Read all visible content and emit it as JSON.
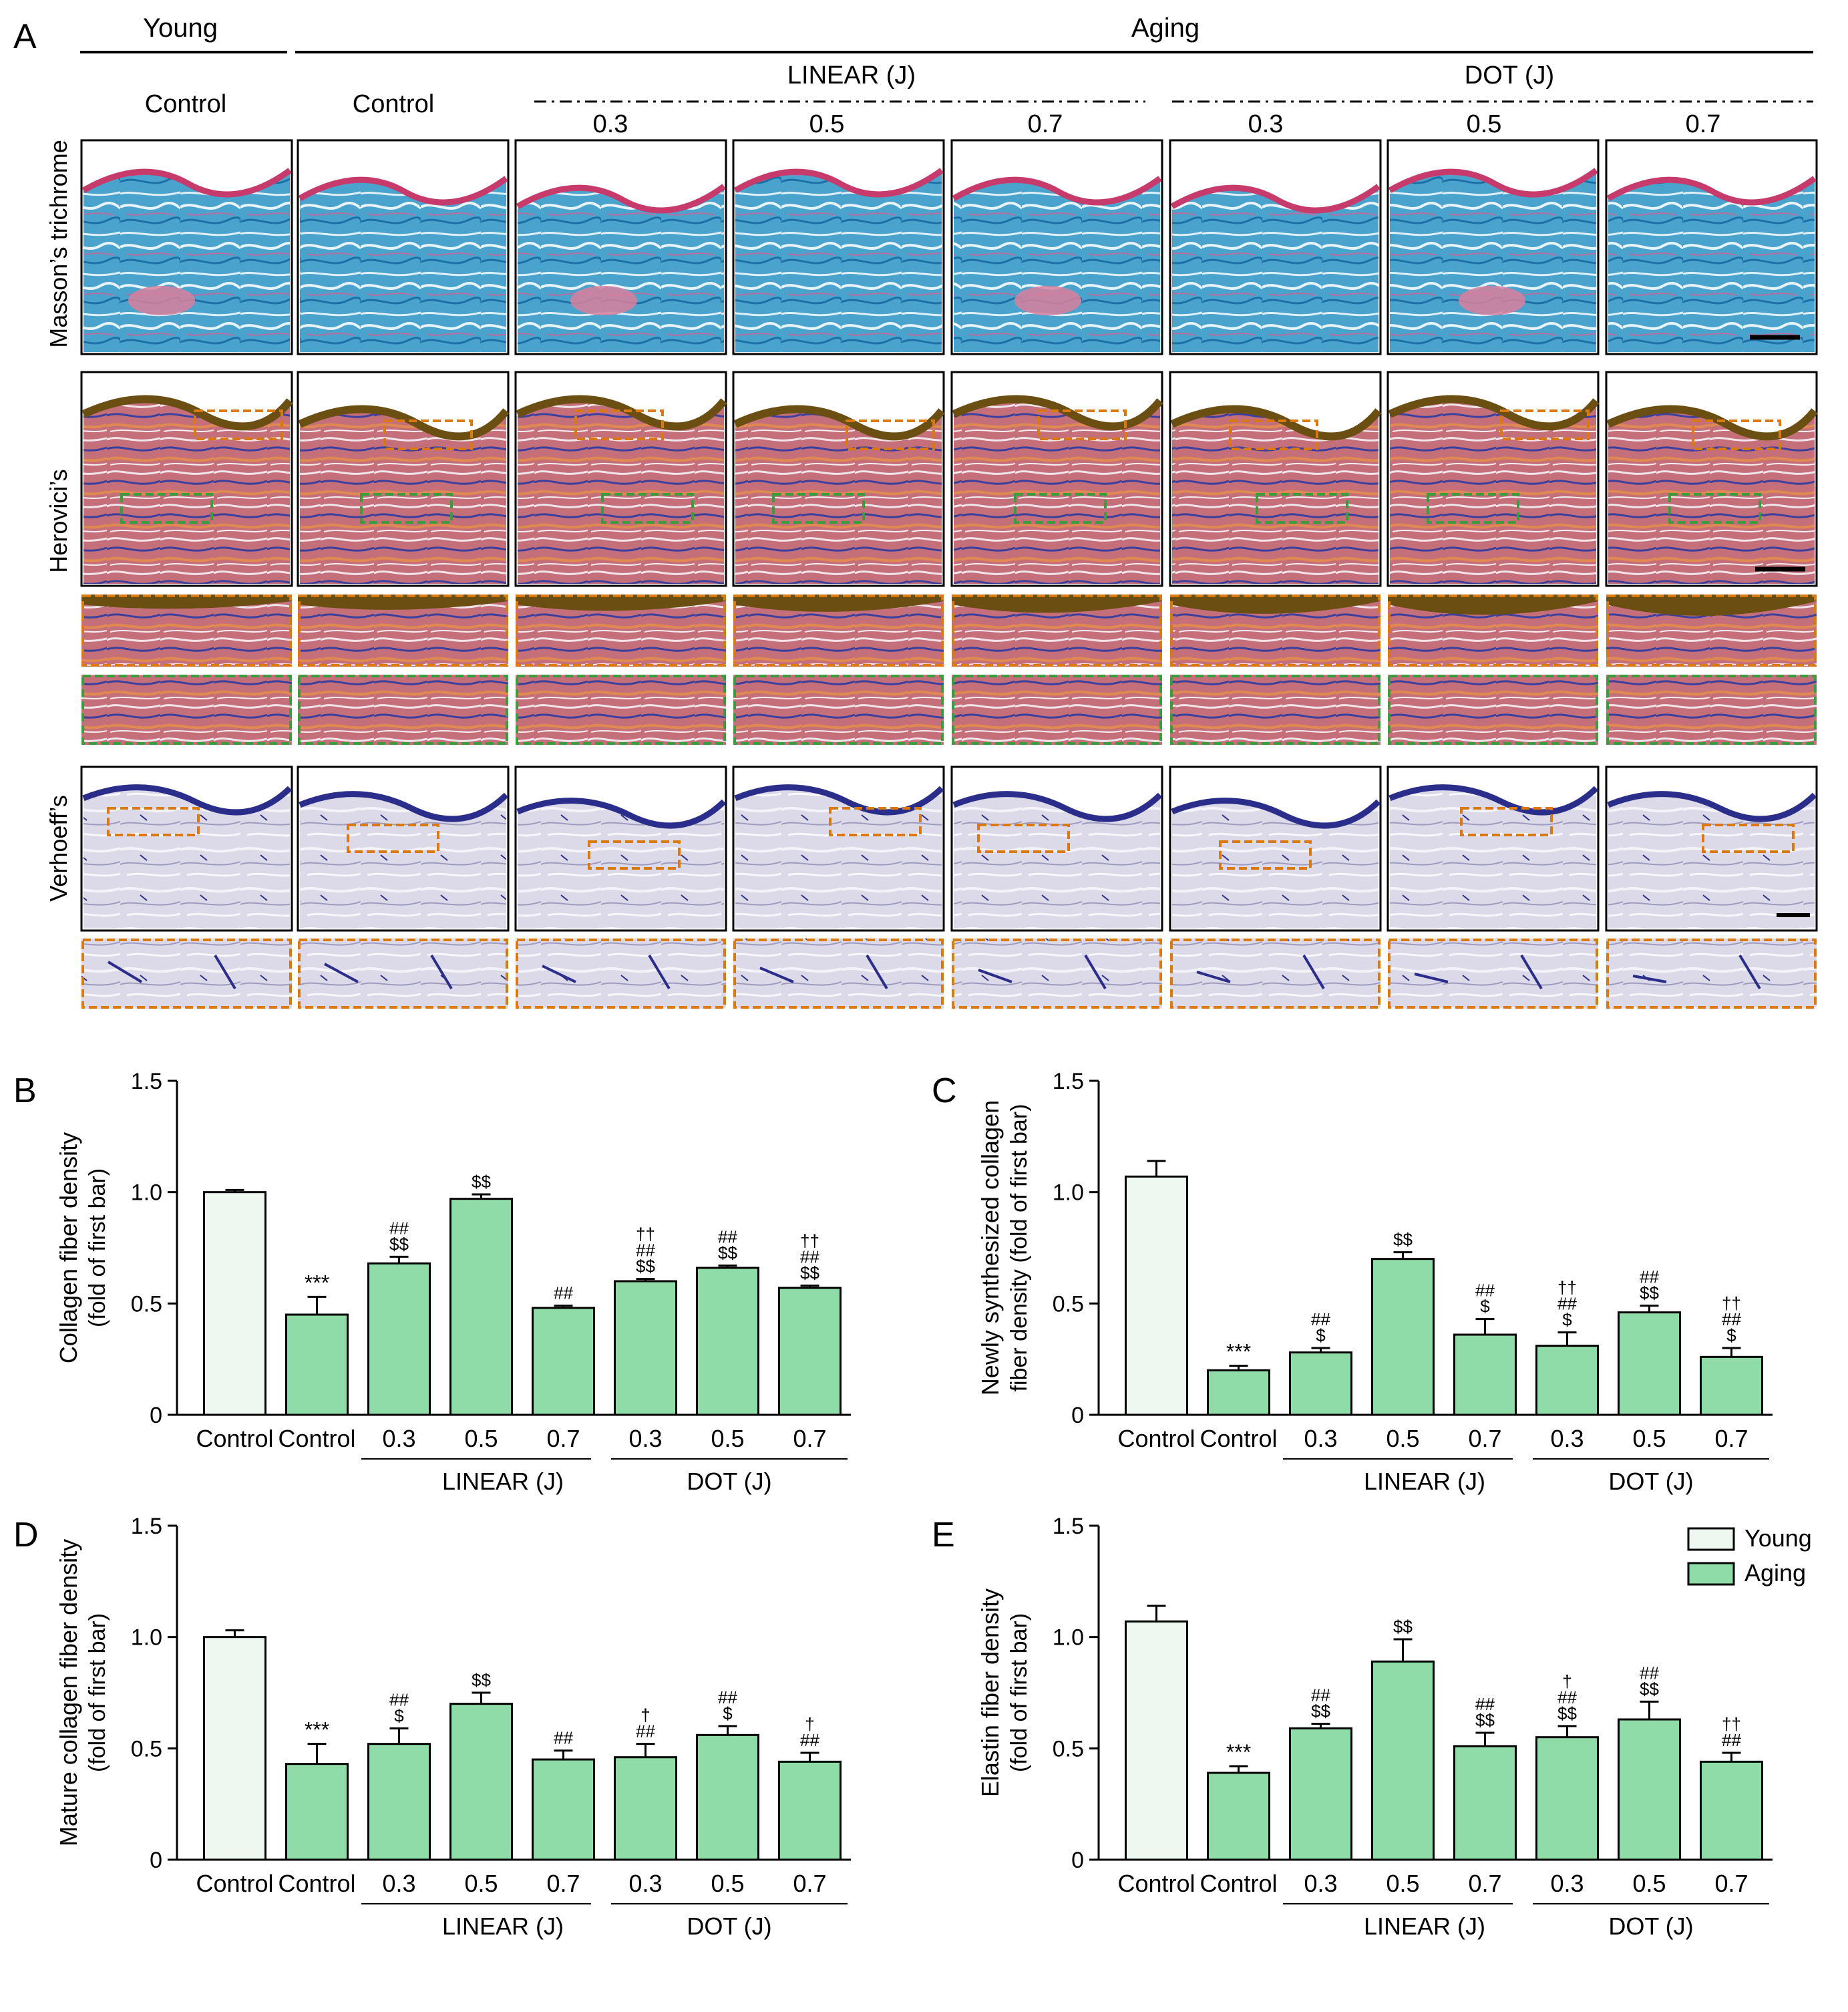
{
  "panel_a": {
    "letter": "A",
    "group_young": "Young",
    "group_aging": "Aging",
    "sub_linear": "LINEAR (J)",
    "sub_dot": "DOT (J)",
    "columns": [
      "Control",
      "Control",
      "0.3",
      "0.5",
      "0.7",
      "0.3",
      "0.5",
      "0.7"
    ],
    "rows": [
      "Masson’s trichrome",
      "Herovici’s",
      "Verhoeff’s"
    ],
    "colors": {
      "masson_bg": "#4aa3cc",
      "masson_top": "#c63a6c",
      "herovici_bg": "#c56f7a",
      "herovici_top": "#6b4f12",
      "herovici_fiber": "#3b3f9e",
      "verhoeff_bg": "#d9d7e6",
      "verhoeff_fiber": "#2a2d8a",
      "box_orange": "#d9790f",
      "box_green": "#3a9c3a"
    }
  },
  "legend": {
    "young": "Young",
    "aging": "Aging",
    "young_color": "#eef8f1",
    "aging_color": "#8fdca9"
  },
  "chart_data": [
    {
      "panel": "B",
      "type": "bar",
      "ylabel": "Collagen fiber density",
      "ylabel2": "(fold of first bar)",
      "ylim": [
        0,
        1.5
      ],
      "yticks": [
        "0",
        "0.5",
        "1.0",
        "1.5"
      ],
      "categories": [
        "Control",
        "Control",
        "0.3",
        "0.5",
        "0.7",
        "0.3",
        "0.5",
        "0.7"
      ],
      "group_labels": [
        "LINEAR (J)",
        "DOT (J)"
      ],
      "values": [
        1.0,
        0.45,
        0.68,
        0.97,
        0.48,
        0.6,
        0.66,
        0.57
      ],
      "errors": [
        0.01,
        0.08,
        0.03,
        0.02,
        0.01,
        0.01,
        0.01,
        0.01
      ],
      "annotations": [
        [],
        [
          "***"
        ],
        [
          "##",
          "$$"
        ],
        [
          "$$"
        ],
        [
          "##"
        ],
        [
          "††",
          "##",
          "$$"
        ],
        [
          "##",
          "$$"
        ],
        [
          "††",
          "##",
          "$$"
        ]
      ]
    },
    {
      "panel": "C",
      "type": "bar",
      "ylabel": "Newly synthesized collagen",
      "ylabel2": "fiber density (fold of first bar)",
      "ylim": [
        0,
        1.5
      ],
      "yticks": [
        "0",
        "0.5",
        "1.0",
        "1.5"
      ],
      "categories": [
        "Control",
        "Control",
        "0.3",
        "0.5",
        "0.7",
        "0.3",
        "0.5",
        "0.7"
      ],
      "group_labels": [
        "LINEAR (J)",
        "DOT (J)"
      ],
      "values": [
        1.07,
        0.2,
        0.28,
        0.7,
        0.36,
        0.31,
        0.46,
        0.26
      ],
      "errors": [
        0.07,
        0.02,
        0.02,
        0.03,
        0.07,
        0.06,
        0.03,
        0.04
      ],
      "annotations": [
        [],
        [
          "***"
        ],
        [
          "##",
          "$"
        ],
        [
          "$$"
        ],
        [
          "##",
          "$"
        ],
        [
          "††",
          "##",
          "$"
        ],
        [
          "##",
          "$$"
        ],
        [
          "††",
          "##",
          "$"
        ]
      ]
    },
    {
      "panel": "D",
      "type": "bar",
      "ylabel": "Mature collagen fiber density",
      "ylabel2": "(fold of first bar)",
      "ylim": [
        0,
        1.5
      ],
      "yticks": [
        "0",
        "0.5",
        "1.0",
        "1.5"
      ],
      "categories": [
        "Control",
        "Control",
        "0.3",
        "0.5",
        "0.7",
        "0.3",
        "0.5",
        "0.7"
      ],
      "group_labels": [
        "LINEAR (J)",
        "DOT (J)"
      ],
      "values": [
        1.0,
        0.43,
        0.52,
        0.7,
        0.45,
        0.46,
        0.56,
        0.44
      ],
      "errors": [
        0.03,
        0.09,
        0.07,
        0.05,
        0.04,
        0.06,
        0.04,
        0.04
      ],
      "annotations": [
        [],
        [
          "***"
        ],
        [
          "##",
          "$"
        ],
        [
          "$$"
        ],
        [
          "##"
        ],
        [
          "†",
          "##"
        ],
        [
          "##",
          "$"
        ],
        [
          "†",
          "##"
        ]
      ]
    },
    {
      "panel": "E",
      "type": "bar",
      "ylabel": "Elastin fiber density",
      "ylabel2": "(fold of first bar)",
      "ylim": [
        0,
        1.5
      ],
      "yticks": [
        "0",
        "0.5",
        "1.0",
        "1.5"
      ],
      "categories": [
        "Control",
        "Control",
        "0.3",
        "0.5",
        "0.7",
        "0.3",
        "0.5",
        "0.7"
      ],
      "group_labels": [
        "LINEAR (J)",
        "DOT (J)"
      ],
      "values": [
        1.07,
        0.39,
        0.59,
        0.89,
        0.51,
        0.55,
        0.63,
        0.44
      ],
      "errors": [
        0.07,
        0.03,
        0.02,
        0.1,
        0.06,
        0.05,
        0.08,
        0.04
      ],
      "annotations": [
        [],
        [
          "***"
        ],
        [
          "##",
          "$$"
        ],
        [
          "$$"
        ],
        [
          "##",
          "$$"
        ],
        [
          "†",
          "##",
          "$$"
        ],
        [
          "##",
          "$$"
        ],
        [
          "††",
          "##"
        ]
      ]
    }
  ]
}
